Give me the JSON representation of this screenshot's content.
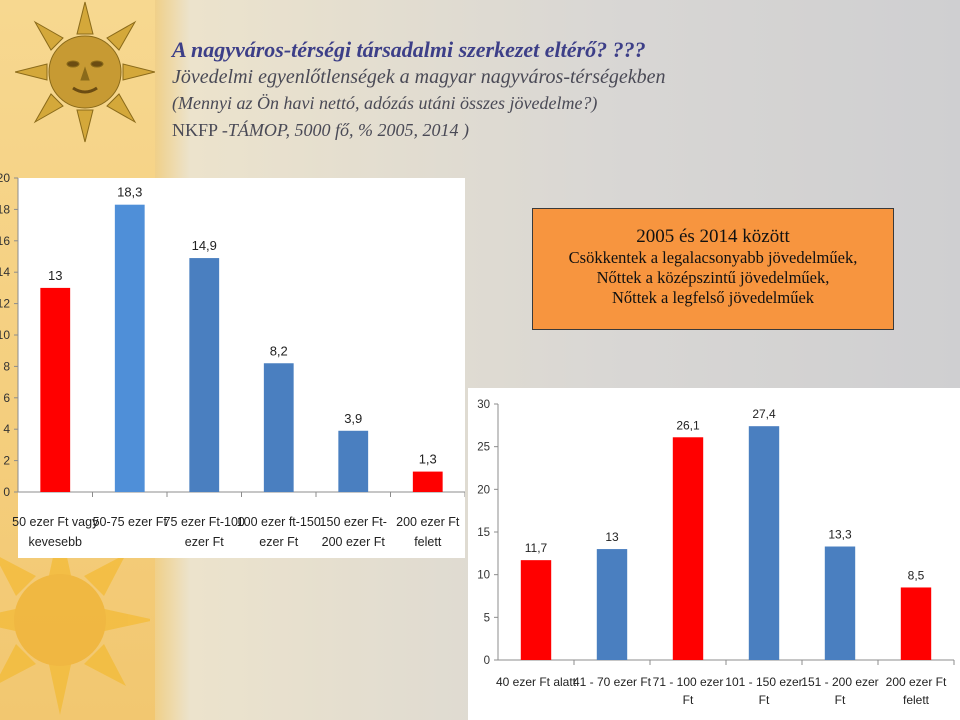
{
  "header": {
    "title": "A nagyváros-térségi társadalmi szerkezet eltérő? ???",
    "subtitle": "Jövedelmi egyenlőtlenségek  a magyar nagyváros-térségekben",
    "question": "(Mennyi az Ön havi nettó, adózás utáni összes jövedelme?)",
    "source_prefix": "NKFP -",
    "source_italic": "TÁMOP, 5000 fő, % 2005, 2014 )"
  },
  "note": {
    "heading": "2005 és 2014 között",
    "lines": [
      "Csökkentek a legalacsonyabb jövedelműek,",
      "Nőttek a középszintű jövedelműek,",
      "Nőttek a legfelső jövedelműek"
    ]
  },
  "colors": {
    "red": "#ff0000",
    "blue1": "#4f8fd8",
    "blue2": "#4a7fc0"
  },
  "chart_data": [
    {
      "type": "bar",
      "categories": [
        [
          "50 ezer Ft vagy",
          "kevesebb"
        ],
        [
          "50-75 ezer Ft"
        ],
        [
          "75 ezer Ft-100",
          "ezer Ft"
        ],
        [
          "100 ezer ft-150",
          "ezer Ft"
        ],
        [
          "150 ezer Ft-",
          "200 ezer Ft"
        ],
        [
          "200 ezer Ft",
          "felett"
        ]
      ],
      "values": [
        13,
        18.3,
        14.9,
        8.2,
        3.9,
        1.3
      ],
      "value_labels": [
        "13",
        "18,3",
        "14,9",
        "8,2",
        "3,9",
        "1,3"
      ],
      "bar_colors": [
        "#ff0000",
        "#4f8fd8",
        "#4a7fc0",
        "#4a7fc0",
        "#4a7fc0",
        "#ff0000"
      ],
      "ylim": [
        0,
        20
      ],
      "yticks": [
        0,
        2,
        4,
        6,
        8,
        10,
        12,
        14,
        16,
        18,
        20
      ],
      "title": "",
      "xlabel": "",
      "ylabel": "",
      "grid": false
    },
    {
      "type": "bar",
      "categories": [
        [
          "40 ezer Ft alatt"
        ],
        [
          "41 - 70 ezer Ft"
        ],
        [
          "71 - 100 ezer",
          "Ft"
        ],
        [
          "101 - 150 ezer",
          "Ft"
        ],
        [
          "151 - 200 ezer",
          "Ft"
        ],
        [
          "200 ezer Ft",
          "felett"
        ]
      ],
      "values": [
        11.7,
        13,
        26.1,
        27.4,
        13.3,
        8.5
      ],
      "value_labels": [
        "11,7",
        "13",
        "26,1",
        "27,4",
        "13,3",
        "8,5"
      ],
      "bar_colors": [
        "#ff0000",
        "#4a7fc0",
        "#ff0000",
        "#4a7fc0",
        "#4a7fc0",
        "#ff0000"
      ],
      "ylim": [
        0,
        30
      ],
      "yticks": [
        0,
        5,
        10,
        15,
        20,
        25,
        30
      ],
      "title": "",
      "xlabel": "",
      "ylabel": "",
      "grid": false
    }
  ]
}
